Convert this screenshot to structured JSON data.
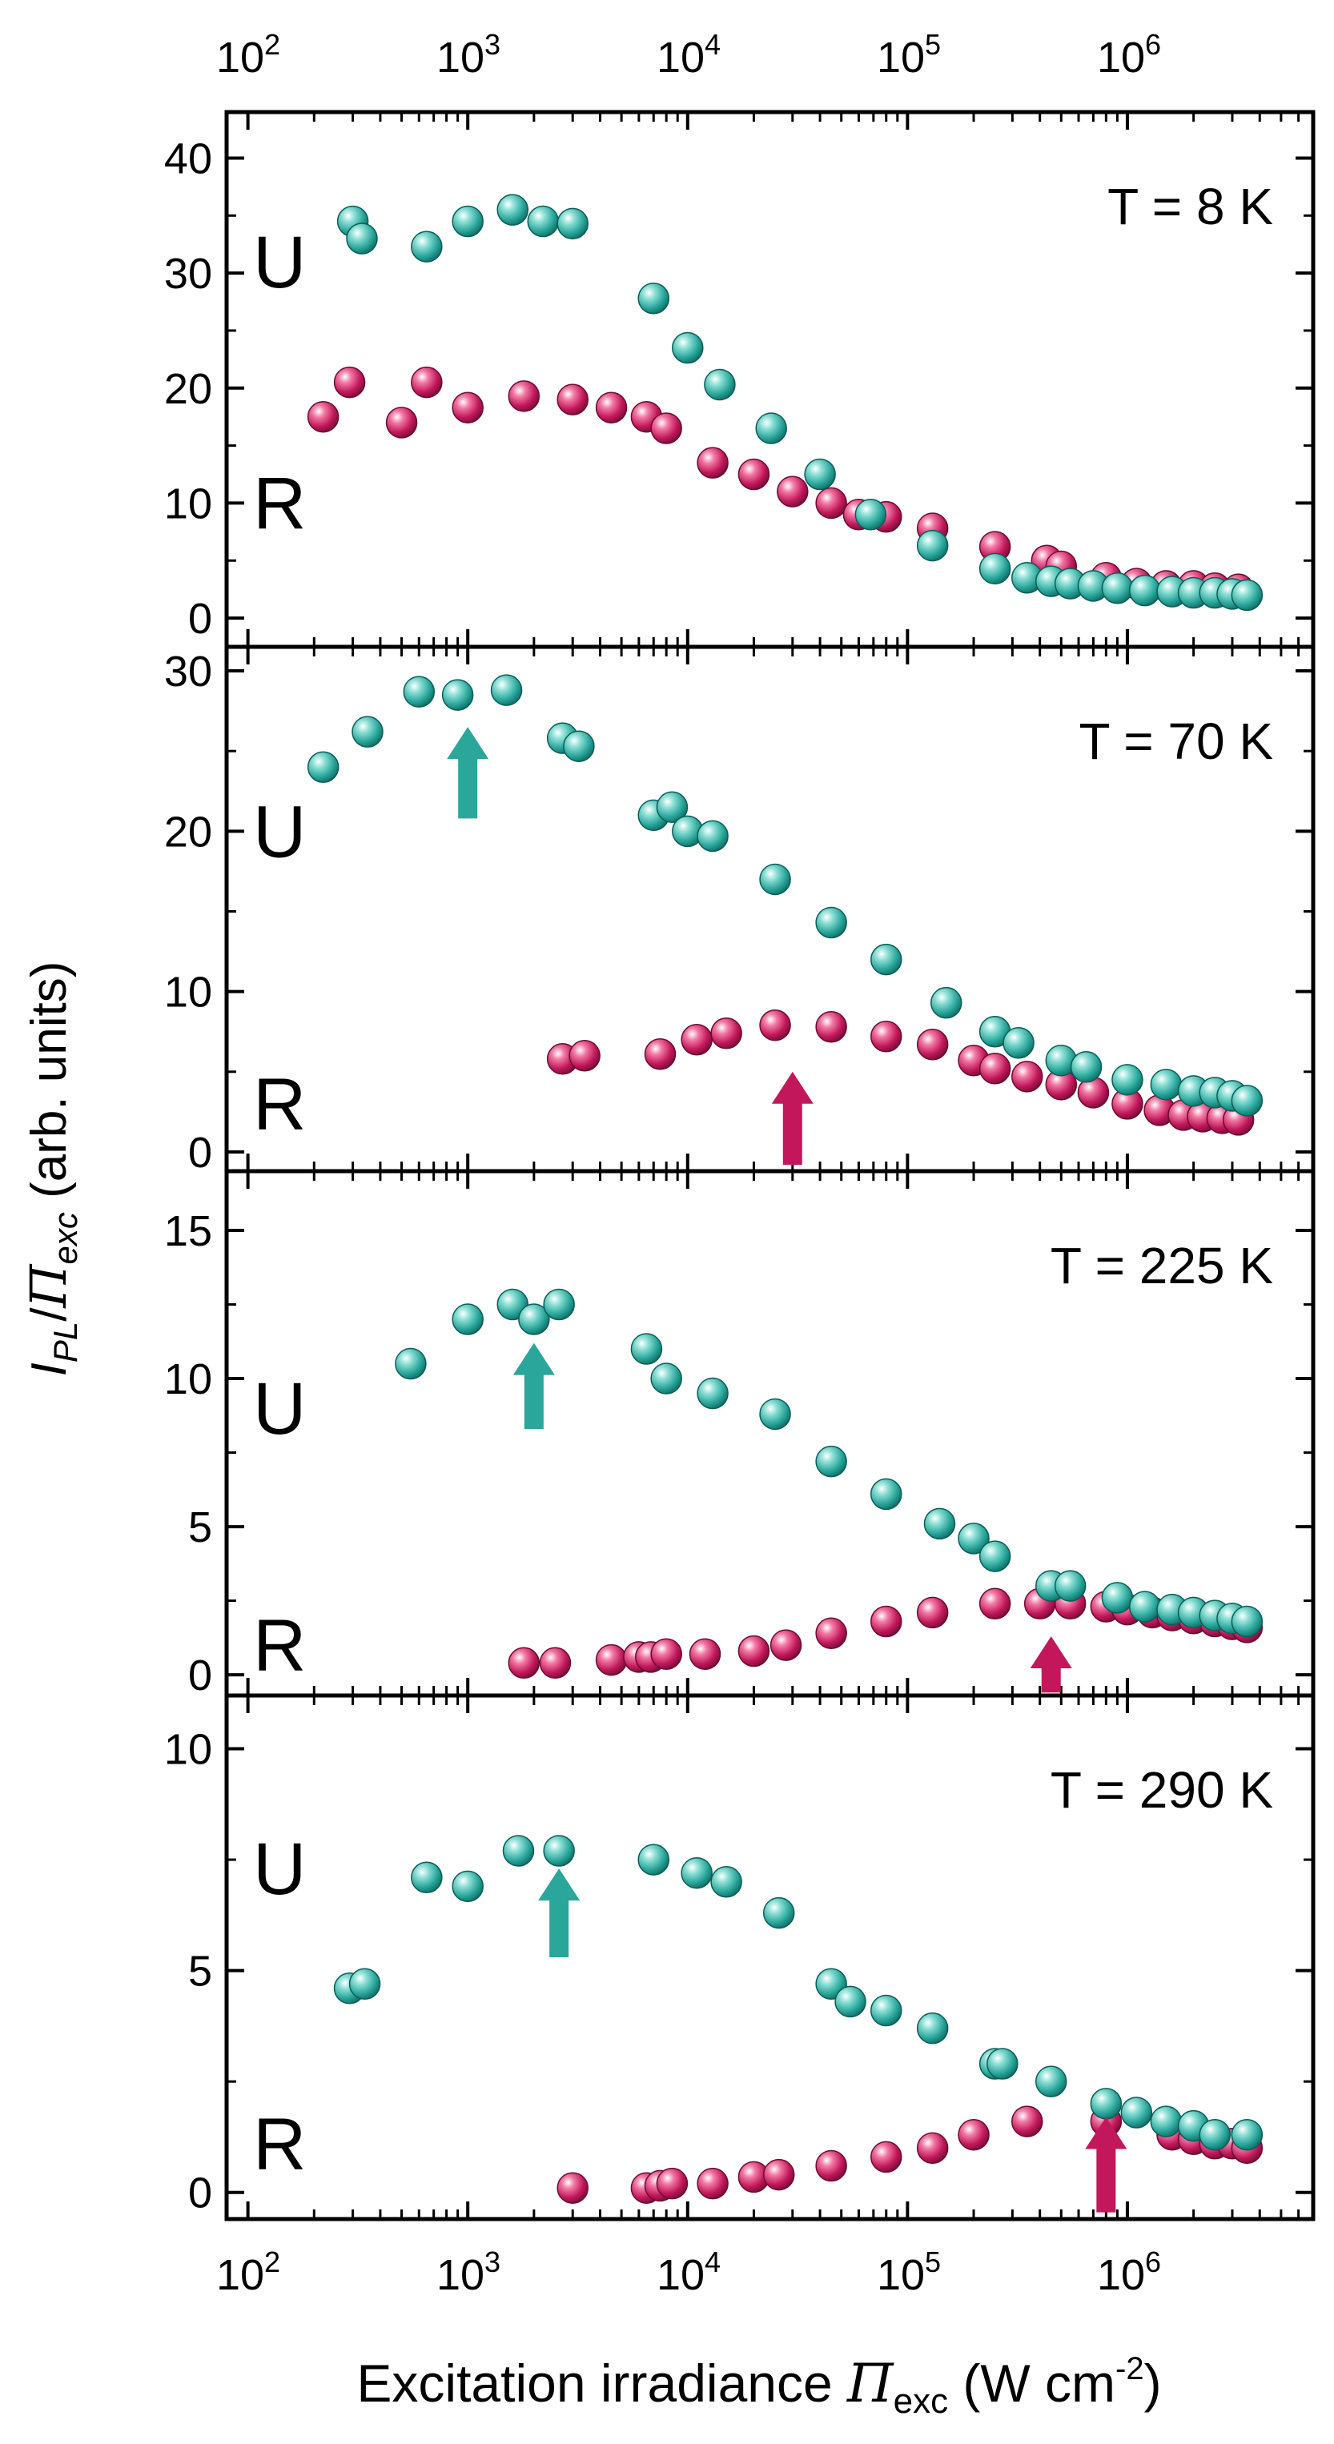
{
  "chart_data": {
    "type": "scatter",
    "x_scale": "log",
    "xlim": [
      80,
      7000000
    ],
    "x_ticks": [
      100,
      1000,
      10000,
      100000,
      1000000
    ],
    "x_tick_labels": [
      {
        "base": "10",
        "exp": "2"
      },
      {
        "base": "10",
        "exp": "3"
      },
      {
        "base": "10",
        "exp": "4"
      },
      {
        "base": "10",
        "exp": "5"
      },
      {
        "base": "10",
        "exp": "6"
      }
    ],
    "xlabel": {
      "prefix": "Excitation irradiance ",
      "symbol": "Π",
      "sub": "exc",
      "units_prefix": " (W cm",
      "units_exp": "-2",
      "units_suffix": ")"
    },
    "ylabel": {
      "main": "I",
      "main_sub": "PL",
      "slash": "/",
      "den": "Π",
      "den_sub": "exc",
      "units": "  (arb. units)"
    },
    "colors": {
      "U": "#2aa69b",
      "R": "#c2185b"
    },
    "panels": [
      {
        "temperature_label": "T = 8 K",
        "ylim": [
          -2.5,
          44
        ],
        "y_ticks": [
          0,
          10,
          20,
          30,
          40
        ],
        "letter_U": {
          "text": "U",
          "y": 31
        },
        "letter_R": {
          "text": "R",
          "y": 10
        },
        "arrows": [],
        "series": [
          {
            "name": "U",
            "x": [
              300,
              330,
              650,
              1000,
              1600,
              2200,
              3000,
              7000,
              10000,
              14000,
              24000,
              40000,
              68000,
              130000,
              250000,
              350000,
              450000,
              550000,
              700000,
              900000,
              1200000,
              1600000,
              2000000,
              2500000,
              3000000,
              3500000
            ],
            "y": [
              34.5,
              33,
              32.3,
              34.5,
              35.5,
              34.5,
              34.3,
              27.8,
              23.5,
              20.3,
              16.5,
              12.5,
              9,
              6.3,
              4.3,
              3.5,
              3.2,
              3,
              2.8,
              2.6,
              2.4,
              2.3,
              2.2,
              2.2,
              2.1,
              2
            ]
          },
          {
            "name": "R",
            "x": [
              220,
              290,
              500,
              650,
              1000,
              1800,
              3000,
              4500,
              6500,
              8000,
              13000,
              20000,
              30000,
              45000,
              60000,
              80000,
              130000,
              250000,
              430000,
              500000,
              800000,
              1100000,
              1500000,
              2000000,
              2500000,
              3200000
            ],
            "y": [
              17.5,
              20.5,
              17,
              20.5,
              18.3,
              19.3,
              19,
              18.3,
              17.5,
              16.5,
              13.5,
              12.5,
              11,
              10,
              9,
              8.8,
              7.8,
              6.2,
              5,
              4.5,
              3.5,
              3,
              2.8,
              2.8,
              2.6,
              2.5
            ]
          }
        ]
      },
      {
        "temperature_label": "T = 70 K",
        "ylim": [
          -1.2,
          31.5
        ],
        "y_ticks": [
          0,
          10,
          20,
          30
        ],
        "letter_U": {
          "text": "U",
          "y": 20
        },
        "letter_R": {
          "text": "R",
          "y": 3
        },
        "arrows": [
          {
            "series": "U",
            "x": 1000,
            "y_tip": 26.5,
            "y_base": 20.8
          },
          {
            "series": "R",
            "x": 30000,
            "y_tip": 5,
            "y_base": -0.8
          }
        ],
        "series": [
          {
            "name": "U",
            "x": [
              220,
              350,
              600,
              900,
              1500,
              2700,
              3200,
              7000,
              8500,
              10000,
              13000,
              25000,
              45000,
              80000,
              150000,
              250000,
              320000,
              500000,
              650000,
              1000000,
              1500000,
              2000000,
              2500000,
              3000000,
              3500000
            ],
            "y": [
              24,
              26.2,
              28.7,
              28.5,
              28.8,
              25.8,
              25.3,
              21,
              21.5,
              20,
              19.7,
              17,
              14.3,
              12,
              9.3,
              7.5,
              6.8,
              5.7,
              5.3,
              4.5,
              4.2,
              3.8,
              3.7,
              3.5,
              3.2
            ]
          },
          {
            "name": "R",
            "x": [
              2700,
              3400,
              7500,
              11000,
              15000,
              25000,
              45000,
              80000,
              130000,
              200000,
              250000,
              350000,
              500000,
              700000,
              1000000,
              1400000,
              1800000,
              2200000,
              2700000,
              3200000
            ],
            "y": [
              5.8,
              6,
              6.1,
              7,
              7.4,
              7.9,
              7.8,
              7.2,
              6.7,
              5.7,
              5.2,
              4.7,
              4.2,
              3.7,
              3,
              2.6,
              2.3,
              2.2,
              2.1,
              2
            ]
          }
        ]
      },
      {
        "temperature_label": "T = 225 K",
        "ylim": [
          -0.7,
          17
        ],
        "y_ticks": [
          0,
          5,
          10,
          15
        ],
        "letter_U": {
          "text": "U",
          "y": 9
        },
        "letter_R": {
          "text": "R",
          "y": 1
        },
        "arrows": [
          {
            "series": "U",
            "x": 2000,
            "y_tip": 11.2,
            "y_base": 8.3
          },
          {
            "series": "R",
            "x": 450000,
            "y_tip": 1.3,
            "y_base": -0.6
          }
        ],
        "series": [
          {
            "name": "U",
            "x": [
              550,
              1000,
              1600,
              2000,
              2600,
              6500,
              8000,
              13000,
              25000,
              45000,
              80000,
              140000,
              200000,
              250000,
              450000,
              550000,
              900000,
              1200000,
              1600000,
              2000000,
              2500000,
              3000000,
              3500000
            ],
            "y": [
              10.5,
              12,
              12.5,
              12,
              12.5,
              11,
              10,
              9.5,
              8.8,
              7.2,
              6.1,
              5.1,
              4.6,
              4,
              3,
              3,
              2.6,
              2.3,
              2.2,
              2.1,
              2,
              1.9,
              1.8
            ]
          },
          {
            "name": "R",
            "x": [
              1800,
              2500,
              4500,
              6000,
              6800,
              8000,
              12000,
              20000,
              28000,
              45000,
              80000,
              130000,
              250000,
              400000,
              550000,
              800000,
              1000000,
              1300000,
              1600000,
              2000000,
              2500000,
              3000000,
              3500000
            ],
            "y": [
              0.4,
              0.4,
              0.5,
              0.6,
              0.6,
              0.7,
              0.7,
              0.8,
              1,
              1.4,
              1.8,
              2.1,
              2.4,
              2.4,
              2.4,
              2.3,
              2.2,
              2.1,
              2,
              1.9,
              1.8,
              1.7,
              1.6
            ]
          }
        ]
      },
      {
        "temperature_label": "T = 290 K",
        "ylim": [
          -0.6,
          11.2
        ],
        "y_ticks": [
          0,
          5,
          10
        ],
        "letter_U": {
          "text": "U",
          "y": 7.3
        },
        "letter_R": {
          "text": "R",
          "y": 1.1
        },
        "arrows": [
          {
            "series": "U",
            "x": 2600,
            "y_tip": 7.3,
            "y_base": 5.3
          },
          {
            "series": "R",
            "x": 800000,
            "y_tip": 1.7,
            "y_base": -0.45
          }
        ],
        "series": [
          {
            "name": "U",
            "x": [
              290,
              340,
              650,
              1000,
              1700,
              2600,
              7000,
              11000,
              15000,
              26000,
              45000,
              55000,
              80000,
              130000,
              250000,
              270000,
              450000,
              800000,
              1100000,
              1500000,
              2000000,
              2500000,
              3500000
            ],
            "y": [
              4.6,
              4.7,
              7.1,
              6.9,
              7.7,
              7.7,
              7.5,
              7.2,
              7,
              6.3,
              4.7,
              4.3,
              4.1,
              3.7,
              2.9,
              2.9,
              2.5,
              2,
              1.8,
              1.6,
              1.5,
              1.3,
              1.3
            ]
          },
          {
            "name": "R",
            "x": [
              3000,
              6500,
              7500,
              8500,
              13000,
              20000,
              26000,
              45000,
              80000,
              130000,
              200000,
              350000,
              800000,
              1600000,
              2000000,
              2500000,
              3000000,
              3500000
            ],
            "y": [
              0.1,
              0.1,
              0.15,
              0.2,
              0.2,
              0.35,
              0.4,
              0.6,
              0.8,
              1,
              1.3,
              1.6,
              1.6,
              1.3,
              1.2,
              1.1,
              1.1,
              1
            ]
          }
        ]
      }
    ]
  }
}
